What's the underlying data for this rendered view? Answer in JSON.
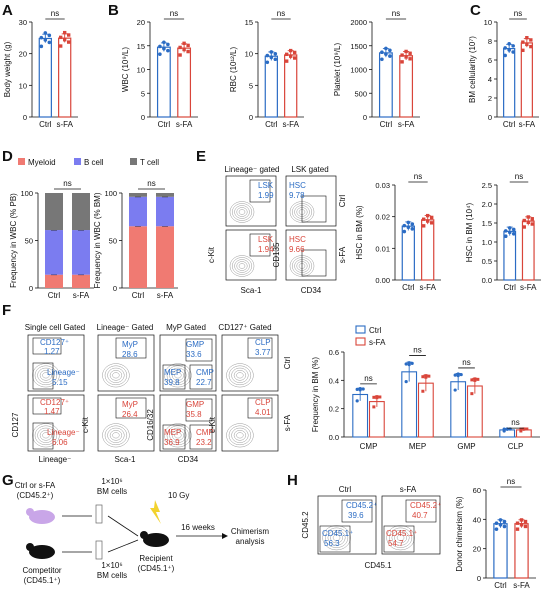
{
  "labels": {
    "ctrl": "Ctrl",
    "sfa": "s-FA",
    "ns": "ns"
  },
  "colors": {
    "ctrl": "#2b6cc4",
    "sfa": "#d9453a",
    "myeloid": "#f07a72",
    "bcell": "#7b7cf0",
    "tcell": "#777777"
  },
  "panels": {
    "A": "A",
    "B": "B",
    "C": "C",
    "D": "D",
    "E": "E",
    "F": "F",
    "G": "G",
    "H": "H"
  },
  "chart_data": [
    {
      "panel": "A",
      "type": "bar",
      "ylabel": "Body weight (g)",
      "ylim": [
        0,
        30
      ],
      "yticks": [
        "0",
        "10",
        "20",
        "30"
      ],
      "categories": [
        "Ctrl",
        "s-FA"
      ],
      "values": [
        24.8,
        24.9
      ],
      "sig": "ns"
    },
    {
      "panel": "B1",
      "type": "bar",
      "ylabel": "WBC (10⁹/L)",
      "ylim": [
        0,
        20
      ],
      "yticks": [
        "0",
        "5",
        "10",
        "15",
        "20"
      ],
      "categories": [
        "Ctrl",
        "s-FA"
      ],
      "values": [
        14.7,
        14.5
      ],
      "sig": "ns"
    },
    {
      "panel": "B2",
      "type": "bar",
      "ylabel": "RBC (10¹²/L)",
      "ylim": [
        0,
        15
      ],
      "yticks": [
        "0",
        "5",
        "10",
        "15"
      ],
      "categories": [
        "Ctrl",
        "s-FA"
      ],
      "values": [
        9.6,
        9.8
      ],
      "sig": "ns"
    },
    {
      "panel": "B3",
      "type": "bar",
      "ylabel": "Platelet (10⁹/L)",
      "ylim": [
        0,
        2000
      ],
      "yticks": [
        "0",
        "500",
        "1000",
        "1500",
        "2000"
      ],
      "categories": [
        "Ctrl",
        "s-FA"
      ],
      "values": [
        1350,
        1290
      ],
      "sig": "ns"
    },
    {
      "panel": "C",
      "type": "bar",
      "ylabel": "BM cellularity (10⁷)",
      "ylim": [
        0,
        10
      ],
      "yticks": [
        "0",
        "2",
        "4",
        "6",
        "8",
        "10"
      ],
      "categories": [
        "Ctrl",
        "s-FA"
      ],
      "values": [
        7.2,
        7.8
      ],
      "sig": "ns"
    },
    {
      "panel": "D1",
      "type": "stacked-bar",
      "ylabel": "Frequency in WBC (% PB)",
      "ylim": [
        0,
        100
      ],
      "yticks": [
        "0",
        "50",
        "100"
      ],
      "categories": [
        "Ctrl",
        "s-FA"
      ],
      "series": [
        {
          "name": "Myeloid",
          "values": [
            14,
            14
          ]
        },
        {
          "name": "B cell",
          "values": [
            47,
            47
          ]
        },
        {
          "name": "T cell",
          "values": [
            39,
            39
          ]
        }
      ],
      "sig": "ns",
      "legend": [
        "Myeloid",
        "B cell",
        "T cell"
      ]
    },
    {
      "panel": "D2",
      "type": "stacked-bar",
      "ylabel": "Frequency in WBC (% BM)",
      "ylim": [
        0,
        100
      ],
      "yticks": [
        "0",
        "50",
        "100"
      ],
      "categories": [
        "Ctrl",
        "s-FA"
      ],
      "series": [
        {
          "name": "Myeloid",
          "values": [
            65,
            65
          ]
        },
        {
          "name": "B cell",
          "values": [
            31,
            31
          ]
        },
        {
          "name": "T cell",
          "values": [
            4,
            4
          ]
        }
      ],
      "sig": "ns"
    },
    {
      "panel": "E1",
      "type": "bar",
      "ylabel": "HSC in BM (%)",
      "ylim": [
        0,
        0.03
      ],
      "yticks": [
        "0.00",
        "0.01",
        "0.02",
        "0.03"
      ],
      "categories": [
        "Ctrl",
        "s-FA"
      ],
      "values": [
        0.017,
        0.019
      ],
      "sig": "ns"
    },
    {
      "panel": "E2",
      "type": "bar",
      "ylabel": "HSC in BM (10⁴)",
      "ylim": [
        0,
        2.5
      ],
      "yticks": [
        "0.0",
        "0.5",
        "1.0",
        "1.5",
        "2.0",
        "2.5"
      ],
      "categories": [
        "Ctrl",
        "s-FA"
      ],
      "values": [
        1.28,
        1.55
      ],
      "sig": "ns"
    },
    {
      "panel": "F",
      "type": "grouped-bar",
      "ylabel": "Frequency in BM (%)",
      "ylim": [
        0,
        0.6
      ],
      "yticks": [
        "0.0",
        "0.2",
        "0.4",
        "0.6"
      ],
      "categories": [
        "CMP",
        "MEP",
        "GMP",
        "CLP"
      ],
      "series": [
        {
          "name": "Ctrl",
          "values": [
            0.3,
            0.46,
            0.39,
            0.05
          ]
        },
        {
          "name": "s-FA",
          "values": [
            0.25,
            0.38,
            0.36,
            0.05
          ]
        }
      ],
      "sig": [
        "ns",
        "ns",
        "ns",
        "ns"
      ]
    },
    {
      "panel": "H",
      "type": "bar",
      "ylabel": "Donor chimerism (%)",
      "ylim": [
        0,
        60
      ],
      "yticks": [
        "0",
        "20",
        "40",
        "60"
      ],
      "categories": [
        "Ctrl",
        "s-FA"
      ],
      "values": [
        37,
        37
      ],
      "sig": "ns"
    }
  ],
  "flow": {
    "E": {
      "t1": "Lineage⁻ gated",
      "t2": "LSK gated",
      "lsk": "LSK",
      "hsc": "HSC",
      "ctrl_lsk": "1.99",
      "sfa_lsk": "1.94",
      "ctrl_hsc": "9.78",
      "sfa_hsc": "9.66",
      "x1": "Sca-1",
      "y1": "c-Kit",
      "x2": "CD34",
      "y2": "CD135"
    },
    "F": {
      "t1": "Single cell Gated",
      "t2": "Lineage⁻ Gated",
      "t3": "MyP Gated",
      "t4": "CD127⁺ Gated",
      "cd127p": "CD127⁺",
      "linm": "Lineage⁻",
      "myp": "MyP",
      "gmp": "GMP",
      "mep": "MEP",
      "cmp": "CMP",
      "clp": "CLP",
      "c_cd127": "1.27",
      "c_lin": "5.15",
      "c_myp": "28.6",
      "c_gmp": "33.6",
      "c_mep": "39.8",
      "c_cmp": "22.7",
      "c_clp": "3.77",
      "s_cd127": "1.47",
      "s_lin": "6.06",
      "s_myp": "26.4",
      "s_gmp": "35.8",
      "s_mep": "36.9",
      "s_cmp": "23.2",
      "s_clp": "4.01",
      "xa": "Lineage⁻",
      "ya": "CD127",
      "xb": "Sca-1",
      "yb": "c-Kit",
      "xc": "CD34",
      "yc": "CD16/32",
      "yd": "c-Kit"
    },
    "H": {
      "c_45_2": "CD45.2⁺",
      "c_v2": "39.6",
      "c_45_1": "CD45.1⁺",
      "c_v1": "56.3",
      "s_45_2": "CD45.2⁺",
      "s_v2": "40.7",
      "s_45_1": "CD45.1⁺",
      "s_v1": "54.7",
      "x": "CD45.1",
      "y": "CD45.2"
    }
  },
  "scheme": {
    "donor": "Ctrl or s-FA",
    "donor_sub": "(CD45.2⁺)",
    "comp": "Competitor",
    "comp_sub": "(CD45.1⁺)",
    "cells1": "1×10⁶",
    "cells1b": "BM cells",
    "cells2": "1×10⁶",
    "cells2b": "BM cells",
    "irr": "10 Gy",
    "weeks": "16 weeks",
    "recip": "Recipient",
    "recip_sub": "(CD45.1⁺)",
    "out": "Chimerism",
    "out2": "analysis"
  }
}
